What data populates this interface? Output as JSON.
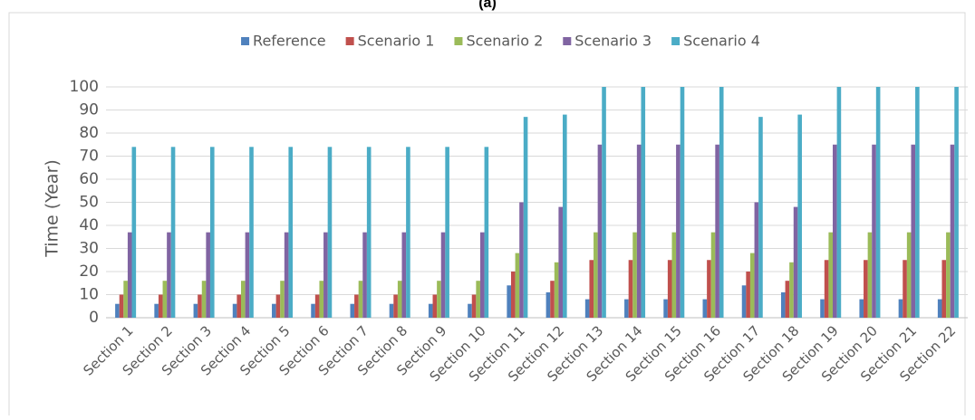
{
  "chart_data": {
    "type": "bar",
    "title": "(a)",
    "y_label": "Time (Year)",
    "categories": [
      "Section 1",
      "Section 2",
      "Section 3",
      "Section 4",
      "Section 5",
      "Section 6",
      "Section 7",
      "Section 8",
      "Section 9",
      "Section 10",
      "Section 11",
      "Section 12",
      "Section 13",
      "Section 14",
      "Section 15",
      "Section 16",
      "Section 17",
      "Section 18",
      "Section 19",
      "Section 20",
      "Section 21",
      "Section 22"
    ],
    "series": [
      {
        "name": "Reference",
        "color": "#4f81bd",
        "values": [
          6,
          6,
          6,
          6,
          6,
          6,
          6,
          6,
          6,
          6,
          14,
          11,
          8,
          8,
          8,
          8,
          14,
          11,
          8,
          8,
          8,
          8
        ]
      },
      {
        "name": "Scenario 1",
        "color": "#c0504d",
        "values": [
          10,
          10,
          10,
          10,
          10,
          10,
          10,
          10,
          10,
          10,
          20,
          16,
          25,
          25,
          25,
          25,
          20,
          16,
          25,
          25,
          25,
          25
        ]
      },
      {
        "name": "Scenario 2",
        "color": "#9bbb59",
        "values": [
          16,
          16,
          16,
          16,
          16,
          16,
          16,
          16,
          16,
          16,
          28,
          24,
          37,
          37,
          37,
          37,
          28,
          24,
          37,
          37,
          37,
          37
        ]
      },
      {
        "name": "Scenario 3",
        "color": "#8064a2",
        "values": [
          37,
          37,
          37,
          37,
          37,
          37,
          37,
          37,
          37,
          37,
          50,
          48,
          75,
          75,
          75,
          75,
          50,
          48,
          75,
          75,
          75,
          75
        ]
      },
      {
        "name": "Scenario 4",
        "color": "#4bacc6",
        "values": [
          74,
          74,
          74,
          74,
          74,
          74,
          74,
          74,
          74,
          74,
          87,
          88,
          100,
          100,
          100,
          100,
          87,
          88,
          100,
          100,
          100,
          100
        ]
      }
    ],
    "ylim": [
      0,
      100
    ],
    "yticks": [
      0,
      10,
      20,
      30,
      40,
      50,
      60,
      70,
      80,
      90,
      100
    ],
    "grid": true,
    "legend": "top"
  }
}
